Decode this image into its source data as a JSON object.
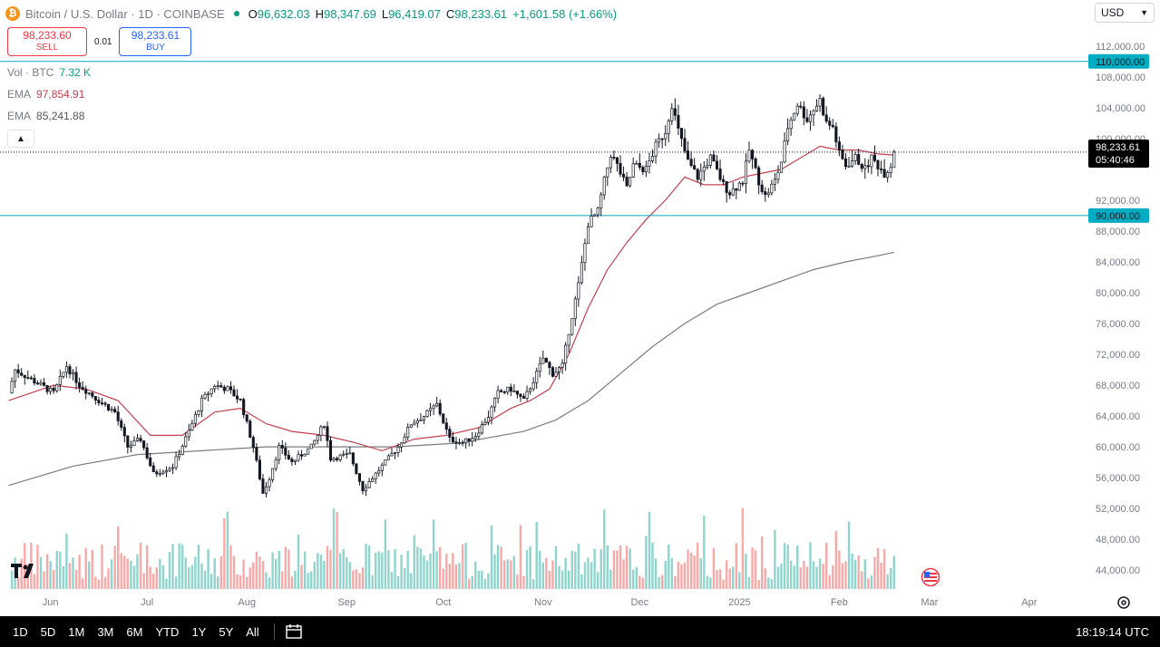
{
  "header": {
    "coin_icon": "bitcoin-icon",
    "coin_glyph": "₿",
    "title": "Bitcoin / U.S. Dollar · 1D · COINBASE",
    "ohlc": [
      {
        "label": "O",
        "value": "96,632.03"
      },
      {
        "label": "H",
        "value": "98,347.69"
      },
      {
        "label": "L",
        "value": "96,419.07"
      },
      {
        "label": "C",
        "value": "98,233.61"
      }
    ],
    "change": "+1,601.58 (+1.66%)"
  },
  "trade": {
    "sell_price": "98,233.60",
    "sell_label": "SELL",
    "spread": "0.01",
    "buy_price": "98,233.61",
    "buy_label": "BUY"
  },
  "indicators": {
    "vol_label": "Vol · BTC",
    "vol_value": "7.32 K",
    "ema1_label": "EMA",
    "ema1_value": "97,854.91",
    "ema2_label": "EMA",
    "ema2_value": "85,241.88"
  },
  "currency": {
    "label": "USD",
    "icon": "chevron-down-icon"
  },
  "price_tag": {
    "price": "98,233.61",
    "countdown": "05:40:46"
  },
  "timeframes": [
    "1D",
    "5D",
    "1M",
    "3M",
    "6M",
    "YTD",
    "1Y",
    "5Y",
    "All"
  ],
  "clock": "18:19:14 UTC",
  "colors": {
    "up": "#089981",
    "down": "#f23645",
    "ema_fast": "#c2414f",
    "ema_slow": "#7c7c7c",
    "hline": "#00acc1",
    "vol_up": "#8fd4cd",
    "vol_down": "#f7a9a7"
  },
  "chart_data": {
    "type": "candlestick",
    "y_range": [
      42500,
      113500
    ],
    "y_ticks": [
      {
        "v": 112000,
        "label": "112,000.00"
      },
      {
        "v": 108000,
        "label": "108,000.00"
      },
      {
        "v": 104000,
        "label": "104,000.00"
      },
      {
        "v": 100000,
        "label": "100,000.00"
      },
      {
        "v": 92000,
        "label": "92,000.00"
      },
      {
        "v": 88000,
        "label": "88,000.00"
      },
      {
        "v": 84000,
        "label": "84,000.00"
      },
      {
        "v": 80000,
        "label": "80,000.00"
      },
      {
        "v": 76000,
        "label": "76,000.00"
      },
      {
        "v": 72000,
        "label": "72,000.00"
      },
      {
        "v": 68000,
        "label": "68,000.00"
      },
      {
        "v": 64000,
        "label": "64,000.00"
      },
      {
        "v": 60000,
        "label": "60,000.00"
      },
      {
        "v": 56000,
        "label": "56,000.00"
      },
      {
        "v": 52000,
        "label": "52,000.00"
      },
      {
        "v": 48000,
        "label": "48,000.00"
      },
      {
        "v": 44000,
        "label": "44,000.00"
      }
    ],
    "x_labels": [
      {
        "d": 13,
        "label": "Jun"
      },
      {
        "d": 43,
        "label": "Jul"
      },
      {
        "d": 74,
        "label": "Aug"
      },
      {
        "d": 105,
        "label": "Sep"
      },
      {
        "d": 135,
        "label": "Oct"
      },
      {
        "d": 166,
        "label": "Nov"
      },
      {
        "d": 196,
        "label": "Dec"
      },
      {
        "d": 227,
        "label": "2025"
      },
      {
        "d": 258,
        "label": "Feb"
      },
      {
        "d": 286,
        "label": "Mar"
      },
      {
        "d": 317,
        "label": "Apr"
      }
    ],
    "horizontal_lines": [
      {
        "value": 110000,
        "label": "110,000.00"
      },
      {
        "value": 90000,
        "label": "90,000.00"
      }
    ],
    "last_close": 98233.61,
    "anchors": [
      [
        0,
        67000
      ],
      [
        2,
        70000
      ],
      [
        8,
        68500
      ],
      [
        14,
        67000
      ],
      [
        18,
        70500
      ],
      [
        22,
        68000
      ],
      [
        28,
        66000
      ],
      [
        33,
        64500
      ],
      [
        37,
        60000
      ],
      [
        41,
        61000
      ],
      [
        45,
        56500
      ],
      [
        51,
        57500
      ],
      [
        56,
        62000
      ],
      [
        60,
        66000
      ],
      [
        64,
        68000
      ],
      [
        68,
        67500
      ],
      [
        72,
        66000
      ],
      [
        76,
        60000
      ],
      [
        79,
        54000
      ],
      [
        81,
        56000
      ],
      [
        84,
        60000
      ],
      [
        88,
        58000
      ],
      [
        94,
        60000
      ],
      [
        98,
        63000
      ],
      [
        100,
        58500
      ],
      [
        106,
        59000
      ],
      [
        110,
        54500
      ],
      [
        113,
        56000
      ],
      [
        117,
        58000
      ],
      [
        121,
        60000
      ],
      [
        125,
        63000
      ],
      [
        129,
        64000
      ],
      [
        133,
        65500
      ],
      [
        137,
        61000
      ],
      [
        141,
        60500
      ],
      [
        145,
        61500
      ],
      [
        149,
        64000
      ],
      [
        152,
        67000
      ],
      [
        156,
        67500
      ],
      [
        160,
        66000
      ],
      [
        164,
        69500
      ],
      [
        166,
        71500
      ],
      [
        169,
        69500
      ],
      [
        172,
        70500
      ],
      [
        174,
        75000
      ],
      [
        177,
        81000
      ],
      [
        180,
        89000
      ],
      [
        183,
        90500
      ],
      [
        185,
        94500
      ],
      [
        187,
        98000
      ],
      [
        189,
        96500
      ],
      [
        192,
        93500
      ],
      [
        194,
        96500
      ],
      [
        198,
        96000
      ],
      [
        201,
        99000
      ],
      [
        204,
        101000
      ],
      [
        206,
        104500
      ],
      [
        208,
        101000
      ],
      [
        211,
        97000
      ],
      [
        214,
        95000
      ],
      [
        218,
        97500
      ],
      [
        222,
        94000
      ],
      [
        224,
        93000
      ],
      [
        228,
        94500
      ],
      [
        230,
        98500
      ],
      [
        233,
        94500
      ],
      [
        235,
        92500
      ],
      [
        238,
        94500
      ],
      [
        240,
        97000
      ],
      [
        242,
        101500
      ],
      [
        245,
        104500
      ],
      [
        248,
        102500
      ],
      [
        252,
        105000
      ],
      [
        254,
        102000
      ],
      [
        256,
        101500
      ],
      [
        258,
        98000
      ],
      [
        260,
        96500
      ],
      [
        263,
        97500
      ],
      [
        266,
        96000
      ],
      [
        268,
        97500
      ],
      [
        270,
        96500
      ],
      [
        272,
        95500
      ],
      [
        274,
        96500
      ],
      [
        275,
        98233.61
      ]
    ],
    "ema_fast": [
      [
        0,
        66000
      ],
      [
        14,
        68000
      ],
      [
        24,
        67500
      ],
      [
        34,
        66000
      ],
      [
        44,
        61500
      ],
      [
        54,
        61500
      ],
      [
        64,
        64500
      ],
      [
        72,
        65000
      ],
      [
        80,
        63000
      ],
      [
        88,
        62000
      ],
      [
        98,
        61500
      ],
      [
        108,
        60500
      ],
      [
        116,
        59500
      ],
      [
        126,
        61000
      ],
      [
        136,
        61500
      ],
      [
        146,
        62500
      ],
      [
        156,
        65000
      ],
      [
        162,
        66000
      ],
      [
        168,
        67500
      ],
      [
        174,
        72000
      ],
      [
        180,
        78000
      ],
      [
        186,
        83000
      ],
      [
        192,
        86500
      ],
      [
        198,
        89500
      ],
      [
        204,
        92000
      ],
      [
        210,
        95000
      ],
      [
        216,
        94000
      ],
      [
        222,
        94000
      ],
      [
        228,
        95000
      ],
      [
        234,
        95500
      ],
      [
        240,
        96000
      ],
      [
        246,
        97500
      ],
      [
        252,
        99000
      ],
      [
        258,
        98500
      ],
      [
        264,
        98500
      ],
      [
        270,
        98000
      ],
      [
        275,
        97854.91
      ]
    ],
    "ema_slow": [
      [
        0,
        55000
      ],
      [
        20,
        57500
      ],
      [
        40,
        59000
      ],
      [
        60,
        59500
      ],
      [
        80,
        60000
      ],
      [
        100,
        60000
      ],
      [
        120,
        60000
      ],
      [
        140,
        60500
      ],
      [
        160,
        62000
      ],
      [
        170,
        63500
      ],
      [
        180,
        66000
      ],
      [
        190,
        69500
      ],
      [
        200,
        73000
      ],
      [
        210,
        76000
      ],
      [
        220,
        78500
      ],
      [
        230,
        80000
      ],
      [
        240,
        81500
      ],
      [
        250,
        83000
      ],
      [
        260,
        84000
      ],
      [
        270,
        84800
      ],
      [
        275,
        85241.88
      ]
    ]
  }
}
